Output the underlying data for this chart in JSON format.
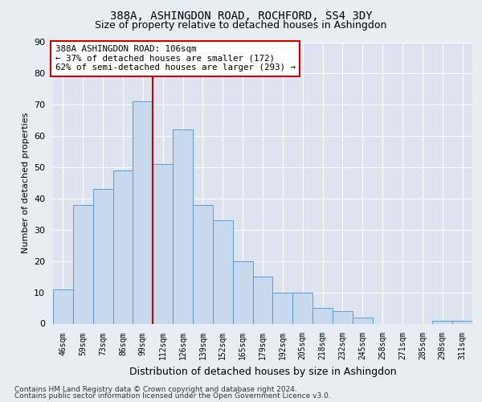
{
  "title": "388A, ASHINGDON ROAD, ROCHFORD, SS4 3DY",
  "subtitle": "Size of property relative to detached houses in Ashingdon",
  "xlabel": "Distribution of detached houses by size in Ashingdon",
  "ylabel": "Number of detached properties",
  "categories": [
    "46sqm",
    "59sqm",
    "73sqm",
    "86sqm",
    "99sqm",
    "112sqm",
    "126sqm",
    "139sqm",
    "152sqm",
    "165sqm",
    "179sqm",
    "192sqm",
    "205sqm",
    "218sqm",
    "232sqm",
    "245sqm",
    "258sqm",
    "271sqm",
    "285sqm",
    "298sqm",
    "311sqm"
  ],
  "values": [
    11,
    38,
    43,
    49,
    71,
    51,
    62,
    38,
    33,
    20,
    15,
    10,
    10,
    5,
    4,
    2,
    0,
    0,
    0,
    1,
    1
  ],
  "bar_color": "#c9d9ed",
  "bar_edge_color": "#5b9bd5",
  "vline_x": 5.0,
  "vline_color": "#cc0000",
  "annotation_line1": "388A ASHINGDON ROAD: 106sqm",
  "annotation_line2": "← 37% of detached houses are smaller (172)",
  "annotation_line3": "62% of semi-detached houses are larger (293) →",
  "annotation_box_color": "#cc0000",
  "annotation_bg": "#ffffff",
  "ylim": [
    0,
    90
  ],
  "yticks": [
    0,
    10,
    20,
    30,
    40,
    50,
    60,
    70,
    80,
    90
  ],
  "bg_color": "#e8edf4",
  "plot_bg_color": "#dde4f0",
  "grid_color": "#ffffff",
  "footer1": "Contains HM Land Registry data © Crown copyright and database right 2024.",
  "footer2": "Contains public sector information licensed under the Open Government Licence v3.0."
}
